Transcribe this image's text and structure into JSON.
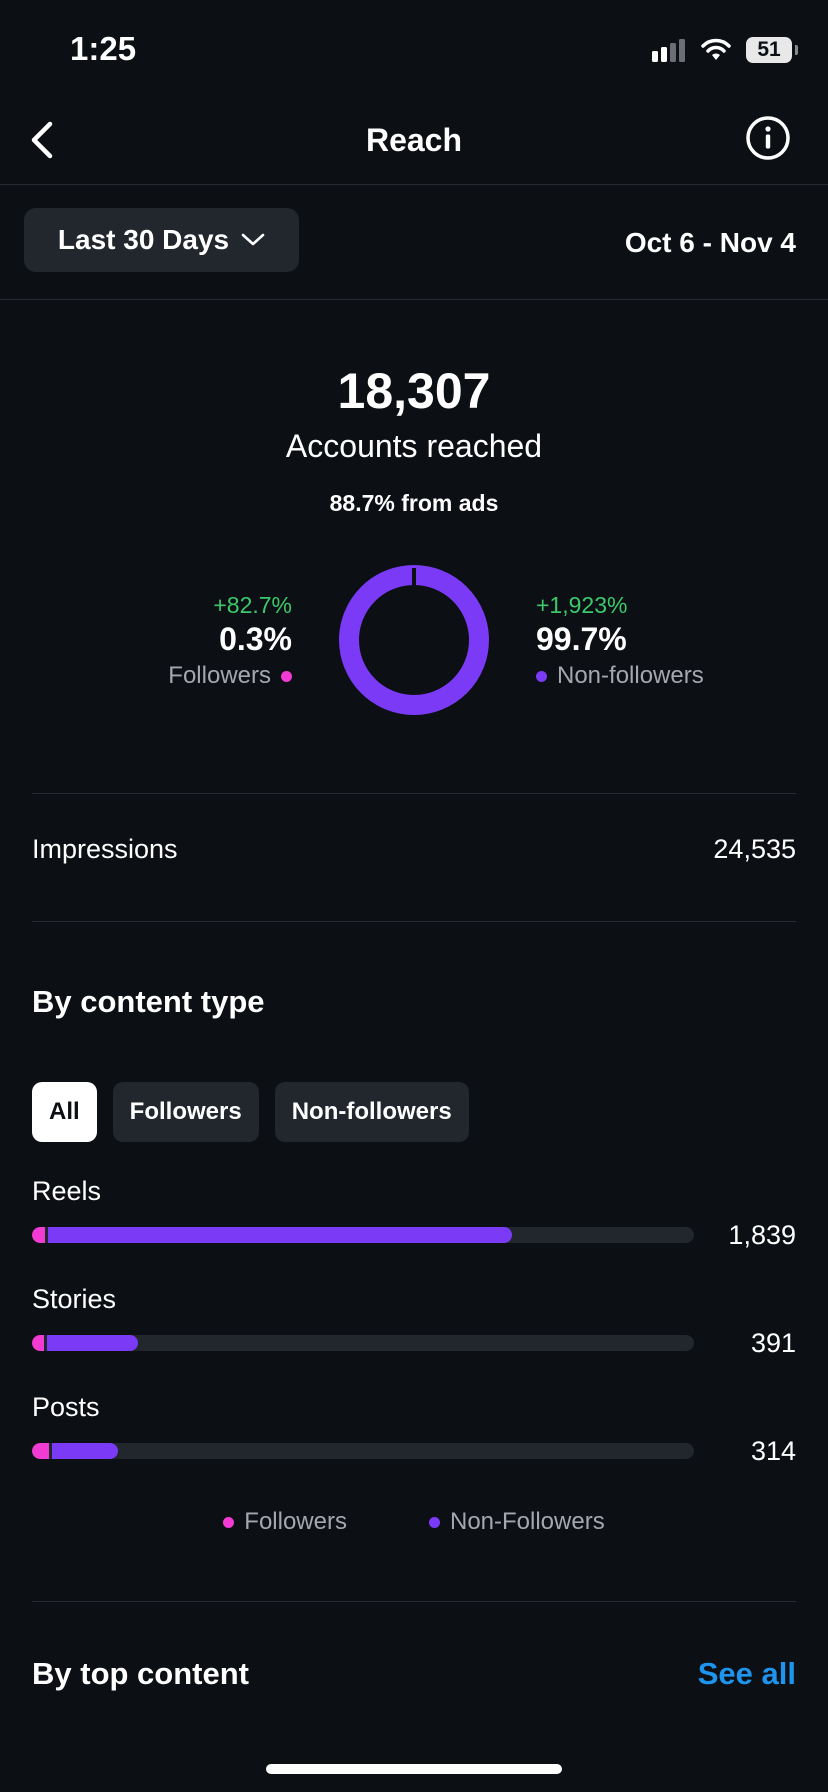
{
  "status_bar": {
    "time": "1:25",
    "battery": "51"
  },
  "header": {
    "title": "Reach"
  },
  "filter": {
    "range_label": "Last 30 Days",
    "date_range": "Oct 6 - Nov 4"
  },
  "summary": {
    "accounts_reached": "18,307",
    "accounts_reached_label": "Accounts reached",
    "ads_note": "88.7% from ads"
  },
  "split": {
    "followers": {
      "change": "+82.7%",
      "value": "0.3%",
      "label": "Followers",
      "share": 0.3
    },
    "non_followers": {
      "change": "+1,923%",
      "value": "99.7%",
      "label": "Non-followers",
      "share": 99.7
    }
  },
  "impressions": {
    "label": "Impressions",
    "value": "24,535"
  },
  "by_content_type": {
    "title": "By content type",
    "chips": [
      "All",
      "Followers",
      "Non-followers"
    ],
    "active_chip": "All",
    "rows": [
      {
        "label": "Reels",
        "value": "1,839",
        "followers_fraction": 0.02,
        "total_fraction": 0.725
      },
      {
        "label": "Stories",
        "value": "391",
        "followers_fraction": 0.018,
        "total_fraction": 0.16
      },
      {
        "label": "Posts",
        "value": "314",
        "followers_fraction": 0.025,
        "total_fraction": 0.13
      }
    ],
    "legend": {
      "followers": "Followers",
      "non_followers": "Non-Followers"
    }
  },
  "top_content": {
    "title": "By top content",
    "see_all": "See all"
  },
  "colors": {
    "followers": "#f23bd3",
    "non_followers": "#7b3af5",
    "positive": "#3cc96b",
    "link": "#1d95ee"
  }
}
